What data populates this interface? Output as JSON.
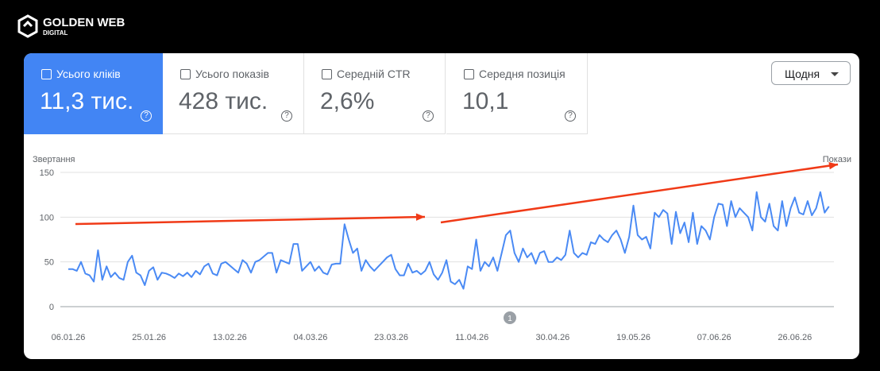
{
  "brand": {
    "name": "GOLDEN WEB",
    "sub": "DIGITAL"
  },
  "metrics": [
    {
      "label": "Усього кліків",
      "value": "11,3 тис."
    },
    {
      "label": "Усього показів",
      "value": "428 тис."
    },
    {
      "label": "Середній CTR",
      "value": "2,6%"
    },
    {
      "label": "Середня позиція",
      "value": "10,1"
    }
  ],
  "period": "Щодня",
  "chart_data": {
    "type": "line",
    "y_label": "Звертання",
    "y2_label": "Покази",
    "badge": "1",
    "ylim": [
      0,
      150
    ],
    "yticks": [
      0,
      50,
      100,
      150
    ],
    "grid": true,
    "categories": [
      "06.01.26",
      null,
      null,
      null,
      null,
      null,
      null,
      null,
      null,
      null,
      null,
      null,
      null,
      null,
      null,
      null,
      null,
      null,
      null,
      "25.01.26",
      null,
      null,
      null,
      null,
      null,
      null,
      null,
      null,
      null,
      null,
      null,
      null,
      null,
      null,
      null,
      null,
      null,
      null,
      "13.02.26",
      null,
      null,
      null,
      null,
      null,
      null,
      null,
      null,
      null,
      null,
      null,
      null,
      null,
      null,
      null,
      null,
      null,
      null,
      "04.03.26",
      null,
      null,
      null,
      null,
      null,
      null,
      null,
      null,
      null,
      null,
      null,
      null,
      null,
      null,
      null,
      null,
      null,
      null,
      "23.03.26",
      null,
      null,
      null,
      null,
      null,
      null,
      null,
      null,
      null,
      null,
      null,
      null,
      null,
      null,
      null,
      null,
      null,
      null,
      "11.04.26",
      null,
      null,
      null,
      null,
      null,
      null,
      null,
      null,
      null,
      null,
      null,
      null,
      null,
      null,
      null,
      null,
      null,
      null,
      "30.04.26",
      null,
      null,
      null,
      null,
      null,
      null,
      null,
      null,
      null,
      null,
      null,
      null,
      null,
      null,
      null,
      null,
      null,
      null,
      "19.05.26",
      null,
      null,
      null,
      null,
      null,
      null,
      null,
      null,
      null,
      null,
      null,
      null,
      null,
      null,
      null,
      null,
      null,
      null,
      "07.06.26",
      null,
      null,
      null,
      null,
      null,
      null,
      null,
      null,
      null,
      null,
      null,
      null,
      null,
      null,
      null,
      null,
      null,
      null,
      "26.06.26",
      null,
      null,
      null,
      null,
      null,
      null,
      null,
      null
    ],
    "series": [
      {
        "name": "Звертання",
        "color": "#4a8af4",
        "values": [
          42,
          42,
          40,
          50,
          37,
          35,
          28,
          63,
          30,
          45,
          33,
          38,
          32,
          30,
          50,
          57,
          38,
          35,
          24,
          40,
          44,
          30,
          38,
          37,
          35,
          32,
          37,
          34,
          38,
          33,
          40,
          36,
          45,
          48,
          37,
          35,
          48,
          50,
          46,
          42,
          38,
          52,
          48,
          38,
          50,
          52,
          56,
          60,
          60,
          38,
          52,
          50,
          48,
          70,
          70,
          40,
          45,
          50,
          40,
          45,
          38,
          36,
          47,
          48,
          48,
          92,
          75,
          60,
          65,
          40,
          52,
          45,
          40,
          45,
          50,
          55,
          58,
          42,
          35,
          35,
          48,
          38,
          40,
          36,
          40,
          50,
          36,
          30,
          38,
          52,
          28,
          25,
          30,
          20,
          45,
          42,
          75,
          40,
          50,
          45,
          55,
          40,
          60,
          80,
          85,
          60,
          50,
          65,
          55,
          60,
          48,
          60,
          62,
          50,
          50,
          55,
          52,
          58,
          85,
          60,
          55,
          60,
          58,
          72,
          70,
          80,
          75,
          72,
          80,
          85,
          75,
          60,
          78,
          113,
          80,
          75,
          78,
          65,
          105,
          100,
          108,
          104,
          70,
          106,
          82,
          94,
          72,
          105,
          70,
          90,
          85,
          75,
          100,
          115,
          114,
          90,
          118,
          100,
          110,
          105,
          100,
          85,
          128,
          100,
          95,
          115,
          90,
          85,
          118,
          90,
          110,
          122,
          105,
          103,
          118,
          102,
          110,
          128,
          105,
          112
        ]
      }
    ]
  }
}
